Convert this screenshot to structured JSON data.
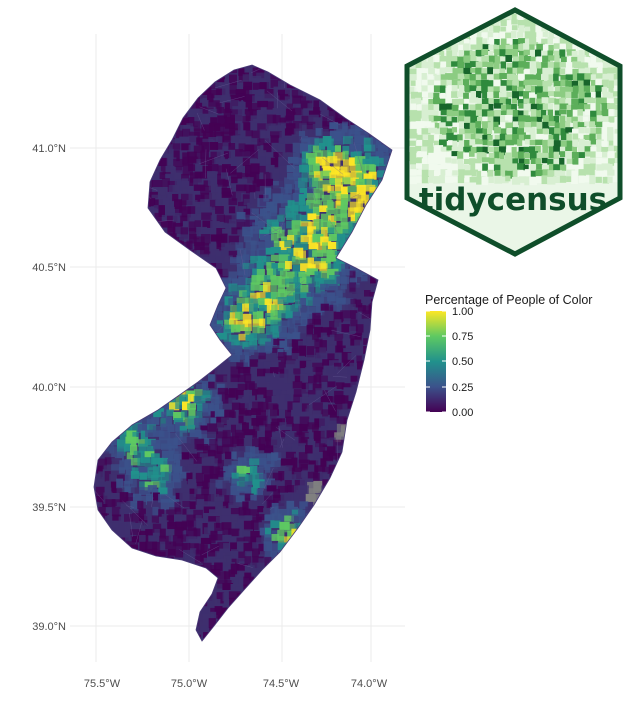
{
  "map": {
    "y_ticks": [
      "41.0°N",
      "40.5°N",
      "40.0°N",
      "39.5°N",
      "39.0°N"
    ],
    "x_ticks": [
      "75.5°W",
      "75.0°W",
      "74.5°W",
      "74.0°W"
    ]
  },
  "legend": {
    "title": "Percentage of People of Color",
    "labels": [
      "1.00",
      "0.75",
      "0.50",
      "0.25",
      "0.00"
    ],
    "palette": [
      "#440154",
      "#3b528b",
      "#21918c",
      "#5ec962",
      "#fde725"
    ],
    "missing_color": "#808080"
  },
  "logo": {
    "text": "tidycensus",
    "border_color": "#0f4e2a",
    "fill_color": "#eaf6e7"
  }
}
